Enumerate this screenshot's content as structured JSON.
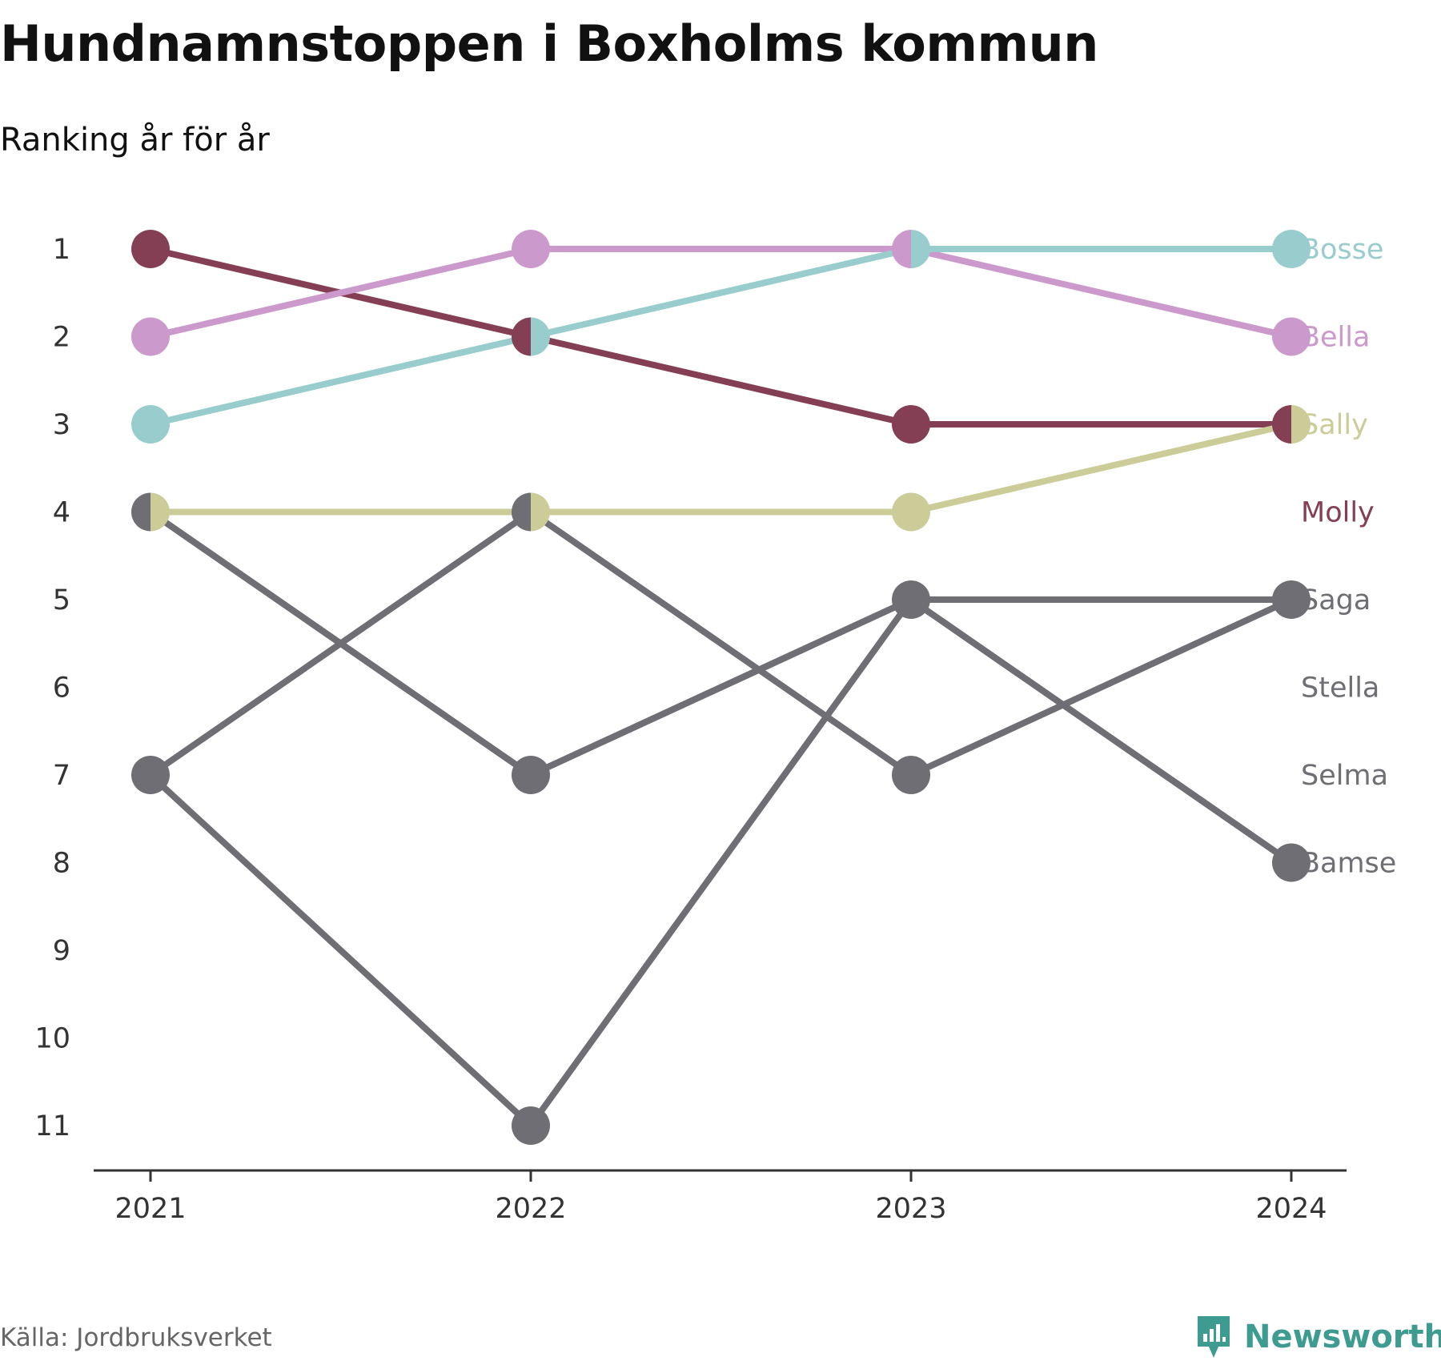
{
  "title": "Hundnamnstoppen i Boxholms kommun",
  "subtitle": "Ranking år för år",
  "source": "Källa: Jordbruksverket",
  "brand": {
    "name": "Newsworthy",
    "icon": "newsworthy-logo-icon",
    "color": "#3e9b8f"
  },
  "chart_data": {
    "type": "line",
    "title": "Hundnamnstoppen i Boxholms kommun",
    "subtitle": "Ranking år för år",
    "x": [
      "2021",
      "2022",
      "2023",
      "2024"
    ],
    "y_ticks": [
      "1",
      "2",
      "3",
      "4",
      "5",
      "6",
      "7",
      "8",
      "9",
      "10",
      "11"
    ],
    "ylim": [
      1,
      11
    ],
    "y_inverted": true,
    "grid": false,
    "legend": "direct labels at right end",
    "labels_order": [
      "Bosse",
      "Bella",
      "Sally",
      "Molly",
      "Saga",
      "Stella",
      "Selma",
      "Bamse"
    ],
    "series": [
      {
        "name": "Molly",
        "color": "#843f55",
        "values": [
          1,
          2,
          3,
          3
        ]
      },
      {
        "name": "Bella",
        "color": "#cc99cc",
        "values": [
          2,
          1,
          1,
          2
        ]
      },
      {
        "name": "Bosse",
        "color": "#99cccc",
        "values": [
          3,
          2,
          1,
          1
        ]
      },
      {
        "name": "Sally",
        "color": "#cccc99",
        "values": [
          4,
          4,
          4,
          3
        ]
      },
      {
        "name": "Saga",
        "color": "#6f6e75",
        "values": [
          7,
          4,
          7,
          5
        ]
      },
      {
        "name": "Stella",
        "color": "#6f6e75",
        "values": [
          4,
          7,
          5,
          5
        ]
      },
      {
        "name": "Selma",
        "color": "#6f6e75",
        "values": [
          7,
          11,
          5,
          8
        ]
      },
      {
        "name": "Bamse",
        "color": "#6f6e75",
        "values": [
          4,
          7,
          5,
          8
        ]
      }
    ]
  }
}
